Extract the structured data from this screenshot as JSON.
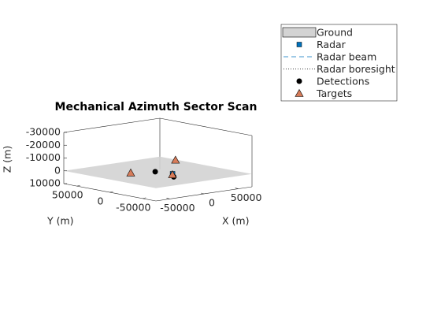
{
  "chart_data": {
    "type": "scatter3d",
    "title": "Mechanical Azimuth Sector Scan",
    "xlabel": "X (m)",
    "ylabel": "Y (m)",
    "zlabel": "Z (m)",
    "xlim": [
      -70000,
      70000
    ],
    "ylim": [
      -70000,
      70000
    ],
    "zlim": [
      -30000,
      10000
    ],
    "z_reverse": true,
    "xticks": [
      -50000,
      0,
      50000
    ],
    "yticks": [
      -50000,
      0,
      50000
    ],
    "zticks": [
      -30000,
      -20000,
      -10000,
      0,
      10000
    ],
    "series": [
      {
        "name": "Ground",
        "color": "#d3d3d3",
        "z": 0
      },
      {
        "name": "Radar",
        "color": "#0072bd",
        "x": [
          6000
        ],
        "y": [
          -16000
        ],
        "z": [
          0
        ]
      },
      {
        "name": "Radar beam",
        "color": "#0072bd",
        "dash": "6,4"
      },
      {
        "name": "Radar boresight",
        "color": "#000000",
        "dash": "1,2"
      },
      {
        "name": "Detections",
        "color": "#000000",
        "x": [
          -2000,
          2000
        ],
        "y": [
          2000,
          -22000
        ],
        "z": [
          -500,
          1500
        ]
      },
      {
        "name": "Targets",
        "color": "#d77c5a",
        "x": [
          -30000,
          40000,
          2000
        ],
        "y": [
          10000,
          15000,
          -20000
        ],
        "z": [
          -1000,
          -5000,
          0
        ]
      }
    ]
  }
}
